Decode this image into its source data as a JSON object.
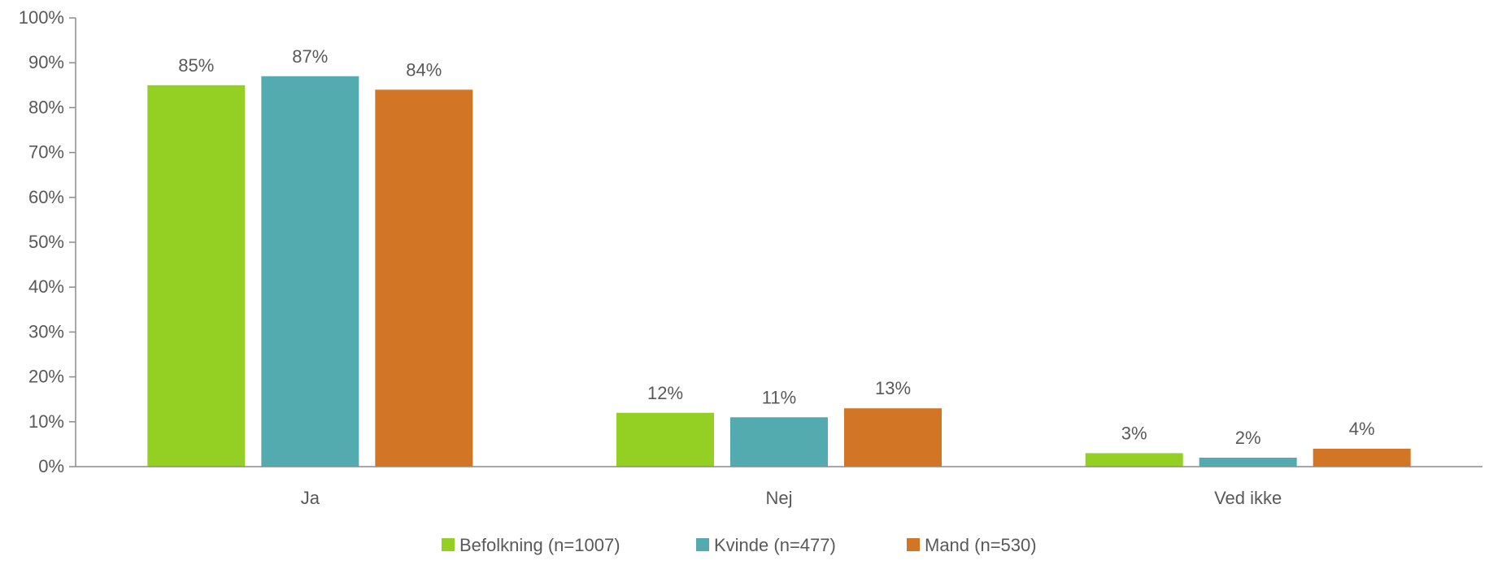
{
  "chart_data": {
    "type": "bar",
    "categories": [
      "Ja",
      "Nej",
      "Ved ikke"
    ],
    "series": [
      {
        "name": "Befolkning (n=1007)",
        "values": [
          85,
          12,
          3
        ],
        "color": "#94cf24"
      },
      {
        "name": "Kvinde (n=477)",
        "values": [
          87,
          11,
          2
        ],
        "color": "#53abb0"
      },
      {
        "name": "Mand (n=530)",
        "values": [
          84,
          13,
          4
        ],
        "color": "#d27524"
      }
    ],
    "value_suffix": "%",
    "ylim": [
      0,
      100
    ],
    "yticks": [
      0,
      10,
      20,
      30,
      40,
      50,
      60,
      70,
      80,
      90,
      100
    ],
    "ytick_labels": [
      "0%",
      "10%",
      "20%",
      "30%",
      "40%",
      "50%",
      "60%",
      "70%",
      "80%",
      "90%",
      "100%"
    ],
    "grid": false,
    "legend_position": "bottom",
    "title": "",
    "xlabel": "",
    "ylabel": ""
  }
}
